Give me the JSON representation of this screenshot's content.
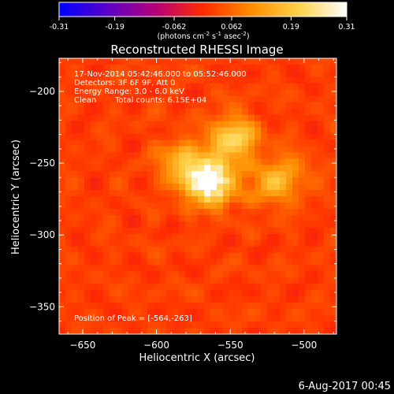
{
  "chart_data": {
    "type": "heatmap",
    "title": "Reconstructed RHESSI Image",
    "xlabel": "Heliocentric X (arcsec)",
    "ylabel": "Heliocentric Y (arcsec)",
    "x_ticks": [
      -650,
      -600,
      -550,
      -500
    ],
    "y_ticks": [
      -200,
      -250,
      -300,
      -350
    ],
    "xlim": [
      -666,
      -478
    ],
    "ylim": [
      -369,
      -177
    ],
    "colorbar": {
      "ticks": [
        "-0.31",
        "-0.19",
        "-0.062",
        "0.062",
        "0.19",
        "0.31"
      ],
      "range": [
        -0.31,
        0.31
      ],
      "unit_parts": [
        "(photons cm",
        "-2",
        " s",
        "-1",
        " asec",
        "-2",
        ")"
      ],
      "colors": [
        "#0000ff",
        "#5a00c8",
        "#b4007a",
        "#ff2a00",
        "#ff8c00",
        "#ffd24a",
        "#ffffff"
      ]
    },
    "annotations": {
      "time_range": "17-Nov-2014 05:42:46.000 to 05:52:46.000",
      "detectors": "Detectors: 3F 6F 9F, Att 0",
      "energy": "Energy Range: 3.0 - 6.0 keV",
      "method": "Clean",
      "counts": "Total counts: 6.15E+04",
      "peak": "Position of Peak = [-564,-263]"
    },
    "peak": [
      -564,
      -263
    ],
    "sources": [
      {
        "x": -564,
        "y": -263,
        "amp": 0.31
      },
      {
        "x": -548,
        "y": -233,
        "amp": 0.2
      },
      {
        "x": -583,
        "y": -250,
        "amp": 0.14
      },
      {
        "x": -524,
        "y": -265,
        "amp": 0.1
      },
      {
        "x": -510,
        "y": -258,
        "amp": 0.08
      }
    ]
  },
  "footer": {
    "date": "6-Aug-2017 00:45"
  }
}
